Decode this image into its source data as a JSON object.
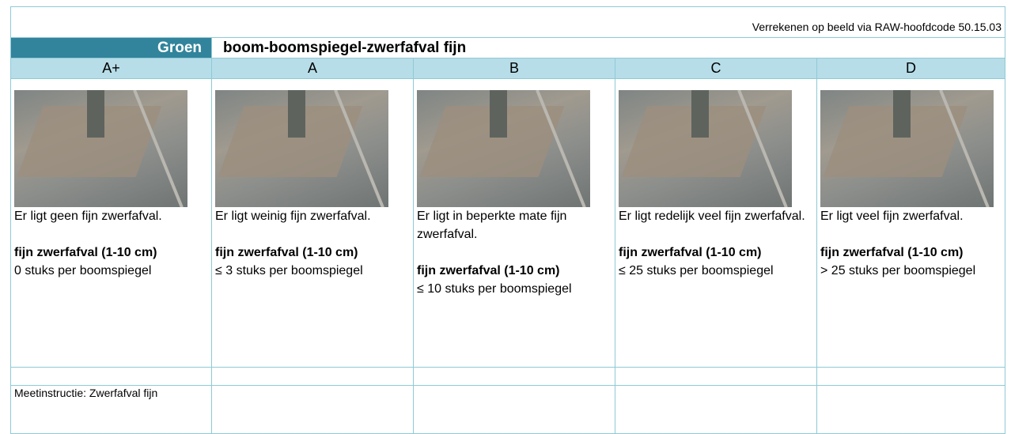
{
  "header": {
    "note": "Verrekenen op beeld via RAW-hoofdcode 50.15.03",
    "category": "Groen",
    "title": "boom-boomspiegel-zwerfafval fijn"
  },
  "columns": [
    {
      "grade": "A+",
      "description": "Er ligt geen fijn zwerfafval.",
      "criterion_label": "fijn zwerfafval (1-10 cm)",
      "criterion_value": "0 stuks per boomspiegel"
    },
    {
      "grade": "A",
      "description": "Er ligt weinig fijn zwerfafval.",
      "criterion_label": "fijn zwerfafval (1-10 cm)",
      "criterion_value": "≤ 3 stuks per boomspiegel"
    },
    {
      "grade": "B",
      "description": "Er ligt in beperkte mate fijn zwerfafval.",
      "criterion_label": "fijn zwerfafval (1-10 cm)",
      "criterion_value": "≤ 10 stuks per boomspiegel"
    },
    {
      "grade": "C",
      "description": "Er ligt redelijk veel fijn zwerfafval.",
      "criterion_label": "fijn zwerfafval (1-10 cm)",
      "criterion_value": "≤ 25 stuks per boomspiegel"
    },
    {
      "grade": "D",
      "description": "Er ligt veel fijn zwerfafval.",
      "criterion_label": "fijn zwerfafval (1-10 cm)",
      "criterion_value": "> 25 stuks per boomspiegel"
    }
  ],
  "measure_instruction": "Meetinstructie: Zwerfafval fijn"
}
